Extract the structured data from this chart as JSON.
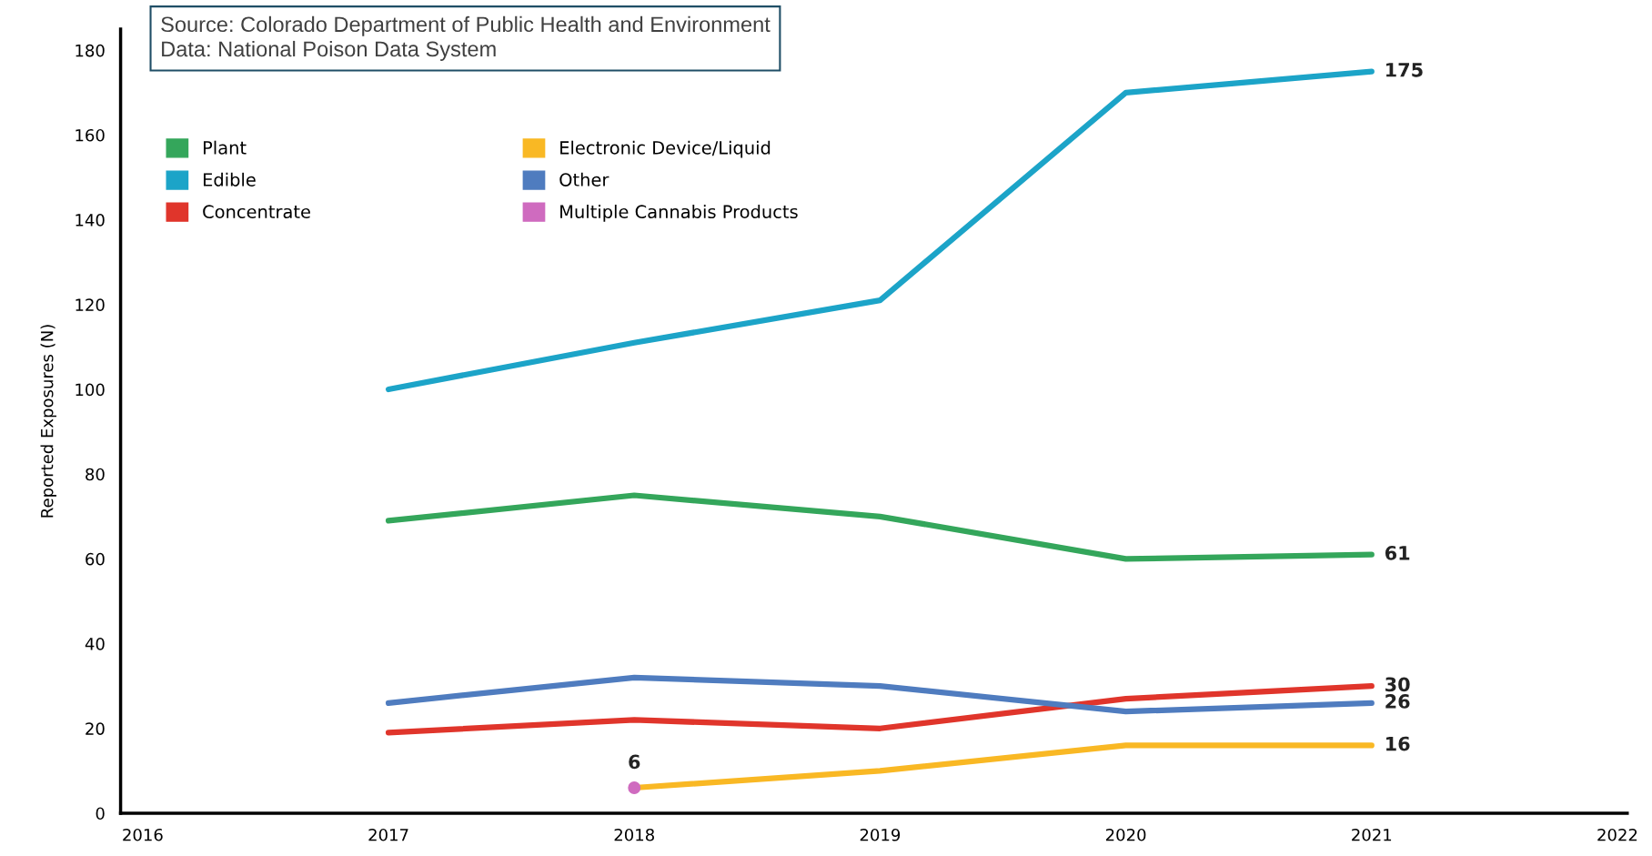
{
  "chart_data": {
    "type": "line",
    "ylabel": "Reported Exposures (N)",
    "annotations": [
      "Source: Colorado Department of Public Health and Environment\nData: National Poison Data System"
    ],
    "x": [
      2017,
      2018,
      2019,
      2020,
      2021
    ],
    "xlim": [
      2015.91,
      2022.04
    ],
    "xticks": [
      2016,
      2017,
      2018,
      2019,
      2020,
      2021,
      2022
    ],
    "ylim": [
      0,
      185
    ],
    "yticks": [
      0,
      20,
      40,
      60,
      80,
      100,
      120,
      140,
      160,
      180
    ],
    "grid": false,
    "legend": "top left",
    "marker": "none",
    "series": [
      {
        "name": "Plant",
        "color": "#34a65b",
        "values": [
          69,
          75,
          70,
          60,
          61
        ],
        "value_labels": [
          null,
          null,
          null,
          null,
          "61"
        ]
      },
      {
        "name": "Edible",
        "color": "#1ca4c8",
        "values": [
          100,
          111,
          121,
          170,
          175
        ],
        "value_labels": [
          null,
          null,
          null,
          null,
          "175"
        ]
      },
      {
        "name": "Concentrate",
        "color": "#e0352b",
        "values": [
          19,
          22,
          20,
          27,
          30
        ],
        "value_labels": [
          null,
          null,
          null,
          null,
          "30"
        ]
      },
      {
        "name": "Electronic Device/Liquid",
        "color": "#f9b824",
        "values": [
          null,
          6,
          10,
          16,
          16
        ],
        "value_labels": [
          null,
          null,
          null,
          null,
          "16"
        ]
      },
      {
        "name": "Other",
        "color": "#4f7cbf",
        "values": [
          26,
          32,
          30,
          24,
          26
        ],
        "value_labels": [
          null,
          null,
          null,
          null,
          "26"
        ]
      },
      {
        "name": "Multiple Cannabis Products",
        "color": "#cf6bbf",
        "values": [
          null,
          6,
          null,
          null,
          null
        ],
        "marker": "circle",
        "value_labels": [
          null,
          "6",
          null,
          null,
          null
        ]
      }
    ]
  }
}
